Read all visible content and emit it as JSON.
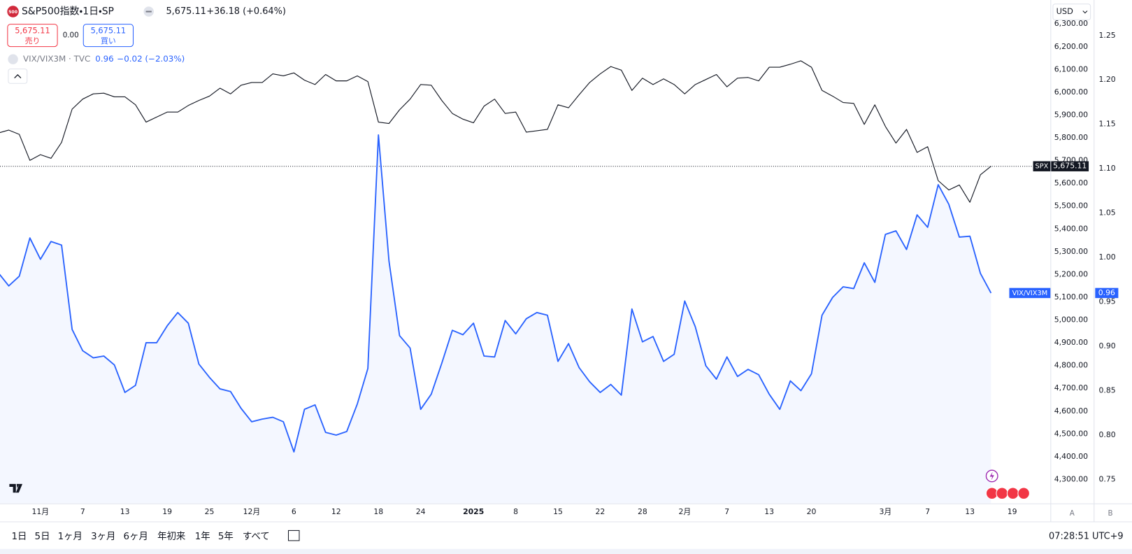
{
  "header": {
    "logo": "500",
    "symbol": "S&P500指数・1日・SP",
    "price": "5,675.11",
    "change": "+36.18 (+0.64%)"
  },
  "trade": {
    "sell_price": "5,675.11",
    "sell_label": "売り",
    "spread": "0.00",
    "buy_price": "5,675.11",
    "buy_label": "買い"
  },
  "legend": {
    "symbol": "VIX/VIX3M · TVC",
    "value": "0.96",
    "change": "−0.02 (−2.03%)"
  },
  "price_tags": {
    "spx": "5,675.11",
    "vix": "0.96"
  },
  "currency": "USD",
  "scale_buttons": [
    "A",
    "B"
  ],
  "ranges": [
    "1日",
    "5日",
    "1ヶ月",
    "3ヶ月",
    "6ヶ月",
    "年初来",
    "1年",
    "5年",
    "すべて"
  ],
  "clock": "07:28:51 UTC+9",
  "chart_data": {
    "type": "line",
    "categories": [
      null,
      null,
      null,
      null,
      "11月",
      null,
      null,
      null,
      "7",
      null,
      null,
      null,
      "13",
      null,
      null,
      null,
      "19",
      null,
      null,
      null,
      "25",
      null,
      null,
      null,
      "12月",
      null,
      null,
      null,
      "6",
      null,
      null,
      null,
      "12",
      null,
      null,
      null,
      "18",
      null,
      null,
      null,
      "24",
      null,
      null,
      null,
      null,
      "2025",
      null,
      null,
      null,
      "8",
      null,
      null,
      null,
      "15",
      null,
      null,
      null,
      "22",
      null,
      null,
      null,
      "28",
      null,
      null,
      null,
      "2月",
      null,
      null,
      null,
      "7",
      null,
      null,
      null,
      "13",
      null,
      null,
      null,
      "20",
      null,
      null,
      null,
      null,
      null,
      null,
      "3月",
      null,
      null,
      null,
      "7",
      null,
      null,
      null,
      "13",
      null,
      null,
      null,
      "19"
    ],
    "series": [
      {
        "name": "SPX",
        "color": "#131722",
        "price_line": true,
        "values": [
          5821,
          5834,
          5815,
          5701,
          5726,
          5710,
          5780,
          5926,
          5970,
          5993,
          5996,
          5980,
          5980,
          5945,
          5869,
          5891,
          5913,
          5913,
          5942,
          5964,
          5983,
          6018,
          5993,
          6031,
          6043,
          6043,
          6081,
          6072,
          6085,
          6053,
          6034,
          6078,
          6050,
          6050,
          6072,
          6047,
          5869,
          5863,
          5923,
          5970,
          6034,
          6031,
          5964,
          5907,
          5882,
          5866,
          5939,
          5970,
          5907,
          5913,
          5825,
          5831,
          5837,
          5945,
          5932,
          5989,
          6043,
          6081,
          6113,
          6097,
          6008,
          6062,
          6034,
          6059,
          6034,
          5993,
          6034,
          6056,
          6078,
          6024,
          6062,
          6065,
          6050,
          6110,
          6110,
          6123,
          6138,
          6110,
          6008,
          5983,
          5955,
          5951,
          5859,
          5945,
          5850,
          5777,
          5837,
          5736,
          5761,
          5612,
          5571,
          5593,
          5517,
          5638,
          5675.11,
          null,
          null
        ]
      },
      {
        "name": "VIX/VIX3M",
        "color": "#2962ff",
        "axis": "y2",
        "area": true,
        "values": [
          0.983,
          0.968,
          0.979,
          1.022,
          0.998,
          1.018,
          1.014,
          0.919,
          0.895,
          0.887,
          0.889,
          0.879,
          0.848,
          0.856,
          0.904,
          0.904,
          0.923,
          0.938,
          0.926,
          0.88,
          0.865,
          0.852,
          0.849,
          0.83,
          0.815,
          0.818,
          0.82,
          0.815,
          0.781,
          0.829,
          0.834,
          0.803,
          0.8,
          0.804,
          0.835,
          0.875,
          1.138,
          0.996,
          0.912,
          0.898,
          0.829,
          0.846,
          0.881,
          0.918,
          0.913,
          0.926,
          0.889,
          0.888,
          0.929,
          0.914,
          0.931,
          0.938,
          0.935,
          0.883,
          0.903,
          0.876,
          0.86,
          0.848,
          0.857,
          0.845,
          0.942,
          0.905,
          0.911,
          0.883,
          0.891,
          0.951,
          0.922,
          0.878,
          0.863,
          0.888,
          0.866,
          0.874,
          0.868,
          0.846,
          0.829,
          0.861,
          0.85,
          0.869,
          0.935,
          0.955,
          0.967,
          0.965,
          0.994,
          0.972,
          1.026,
          1.03,
          1.009,
          1.048,
          1.034,
          1.082,
          1.06,
          1.023,
          1.024,
          0.982,
          0.96,
          null,
          null
        ]
      }
    ],
    "ylim": [
      4195,
      6405
    ],
    "yticks": [
      {
        "value": 4300,
        "label": "4,300.00"
      },
      {
        "value": 4400,
        "label": "4,400.00"
      },
      {
        "value": 4500,
        "label": "4,500.00"
      },
      {
        "value": 4600,
        "label": "4,600.00"
      },
      {
        "value": 4700,
        "label": "4,700.00"
      },
      {
        "value": 4800,
        "label": "4,800.00"
      },
      {
        "value": 4900,
        "label": "4,900.00"
      },
      {
        "value": 5000,
        "label": "5,000.00"
      },
      {
        "value": 5100,
        "label": "5,100.00"
      },
      {
        "value": 5200,
        "label": "5,200.00"
      },
      {
        "value": 5300,
        "label": "5,300.00"
      },
      {
        "value": 5400,
        "label": "5,400.00"
      },
      {
        "value": 5500,
        "label": "5,500.00"
      },
      {
        "value": 5600,
        "label": "5,600.00"
      },
      {
        "value": 5700,
        "label": "5,700.00"
      },
      {
        "value": 5800,
        "label": "5,800.00"
      },
      {
        "value": 5900,
        "label": "5,900.00"
      },
      {
        "value": 6000,
        "label": "6,000.00"
      },
      {
        "value": 6100,
        "label": "6,100.00"
      },
      {
        "value": 6200,
        "label": "6,200.00"
      },
      {
        "value": 6300,
        "label": "6,300.00"
      }
    ],
    "y2lim": [
      0.723,
      1.29
    ],
    "y2ticks": [
      {
        "value": 0.75,
        "label": "0.75"
      },
      {
        "value": 0.8,
        "label": "0.80"
      },
      {
        "value": 0.85,
        "label": "0.85"
      },
      {
        "value": 0.9,
        "label": "0.90"
      },
      {
        "value": 0.95,
        "label": "0.95"
      },
      {
        "value": 1.0,
        "label": "1.00"
      },
      {
        "value": 1.05,
        "label": "1.05"
      },
      {
        "value": 1.1,
        "label": "1.10"
      },
      {
        "value": 1.15,
        "label": "1.15"
      },
      {
        "value": 1.2,
        "label": "1.20"
      },
      {
        "value": 1.25,
        "label": "1.25"
      }
    ],
    "grid": false
  }
}
